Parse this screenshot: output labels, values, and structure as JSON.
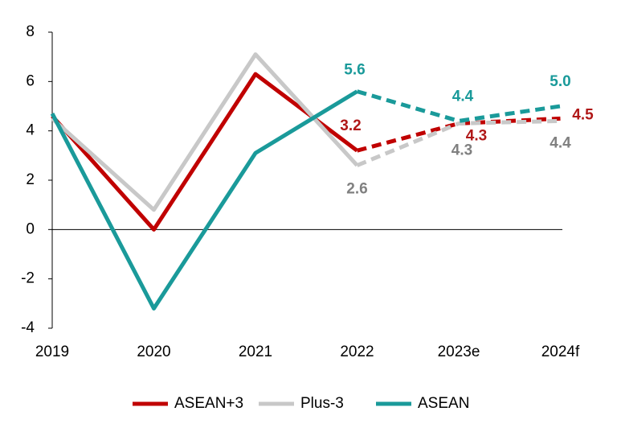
{
  "chart_data": {
    "type": "line",
    "categories": [
      "2019",
      "2020",
      "2021",
      "2022",
      "2023e",
      "2024f"
    ],
    "series": [
      {
        "name": "ASEAN+3",
        "color": "#c00000",
        "label_color": "#b01818",
        "values": [
          4.6,
          0.0,
          6.3,
          3.2,
          4.3,
          4.5
        ],
        "value_labels": [
          null,
          null,
          null,
          "3.2",
          "4.3",
          "4.5"
        ]
      },
      {
        "name": "Plus-3",
        "color": "#c8c8c8",
        "label_color": "#808080",
        "values": [
          4.5,
          0.8,
          7.1,
          2.6,
          4.3,
          4.4
        ],
        "value_labels": [
          null,
          null,
          null,
          "2.6",
          "4.3",
          "4.4"
        ]
      },
      {
        "name": "ASEAN",
        "color": "#1a9a9a",
        "label_color": "#1a9a9a",
        "values": [
          4.7,
          -3.2,
          3.1,
          5.6,
          4.4,
          5.0
        ],
        "value_labels": [
          null,
          null,
          null,
          "5.6",
          "4.4",
          "5.0"
        ]
      }
    ],
    "dashed_from": 3,
    "ylim": [
      -4,
      8
    ],
    "yticks": [
      -4,
      -2,
      0,
      2,
      4,
      6,
      8
    ],
    "grid": false,
    "legend": "bottom"
  }
}
